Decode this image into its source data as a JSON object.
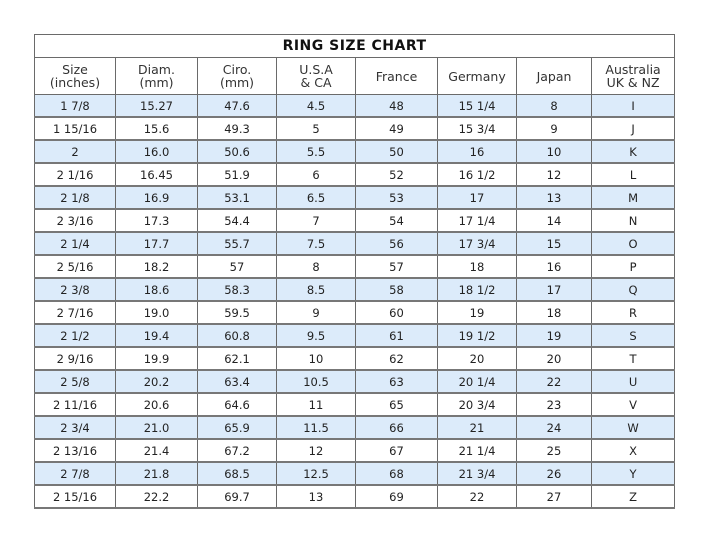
{
  "title": "RING SIZE CHART",
  "columns": [
    [
      "Size",
      "(inches)"
    ],
    [
      "Diam.",
      "(mm)"
    ],
    [
      "Ciro.",
      "(mm)"
    ],
    [
      "U.S.A",
      "& CA"
    ],
    [
      "France",
      ""
    ],
    [
      "Germany",
      ""
    ],
    [
      "Japan",
      ""
    ],
    [
      "Australia",
      "UK & NZ"
    ]
  ],
  "rows": [
    [
      "1 7/8",
      "15.27",
      "47.6",
      "4.5",
      "48",
      "15 1/4",
      "8",
      "I"
    ],
    [
      "1 15/16",
      "15.6",
      "49.3",
      "5",
      "49",
      "15 3/4",
      "9",
      "J"
    ],
    [
      "2",
      "16.0",
      "50.6",
      "5.5",
      "50",
      "16",
      "10",
      "K"
    ],
    [
      "2 1/16",
      "16.45",
      "51.9",
      "6",
      "52",
      "16 1/2",
      "12",
      "L"
    ],
    [
      "2 1/8",
      "16.9",
      "53.1",
      "6.5",
      "53",
      "17",
      "13",
      "M"
    ],
    [
      "2 3/16",
      "17.3",
      "54.4",
      "7",
      "54",
      "17 1/4",
      "14",
      "N"
    ],
    [
      "2 1/4",
      "17.7",
      "55.7",
      "7.5",
      "56",
      "17 3/4",
      "15",
      "O"
    ],
    [
      "2 5/16",
      "18.2",
      "57",
      "8",
      "57",
      "18",
      "16",
      "P"
    ],
    [
      "2 3/8",
      "18.6",
      "58.3",
      "8.5",
      "58",
      "18 1/2",
      "17",
      "Q"
    ],
    [
      "2 7/16",
      "19.0",
      "59.5",
      "9",
      "60",
      "19",
      "18",
      "R"
    ],
    [
      "2 1/2",
      "19.4",
      "60.8",
      "9.5",
      "61",
      "19 1/2",
      "19",
      "S"
    ],
    [
      "2 9/16",
      "19.9",
      "62.1",
      "10",
      "62",
      "20",
      "20",
      "T"
    ],
    [
      "2 5/8",
      "20.2",
      "63.4",
      "10.5",
      "63",
      "20 1/4",
      "22",
      "U"
    ],
    [
      "2 11/16",
      "20.6",
      "64.6",
      "11",
      "65",
      "20 3/4",
      "23",
      "V"
    ],
    [
      "2 3/4",
      "21.0",
      "65.9",
      "11.5",
      "66",
      "21",
      "24",
      "W"
    ],
    [
      "2 13/16",
      "21.4",
      "67.2",
      "12",
      "67",
      "21 1/4",
      "25",
      "X"
    ],
    [
      "2 7/8",
      "21.8",
      "68.5",
      "12.5",
      "68",
      "21 3/4",
      "26",
      "Y"
    ],
    [
      "2 15/16",
      "22.2",
      "69.7",
      "13",
      "69",
      "22",
      "27",
      "Z"
    ]
  ],
  "colors": {
    "stripe": "#dcebfa",
    "border": "#6a6a6a"
  }
}
